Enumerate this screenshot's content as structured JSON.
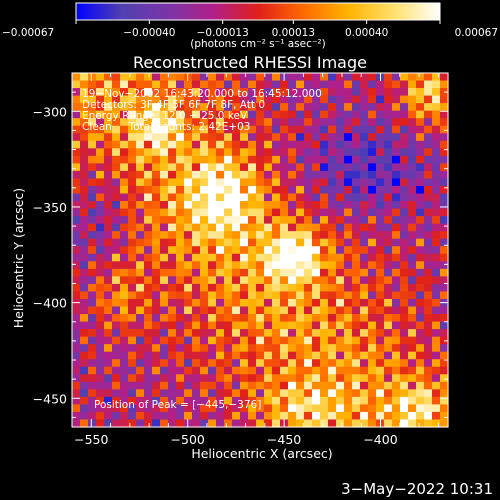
{
  "chart_data": {
    "type": "heatmap",
    "title": "Reconstructed RHESSI Image",
    "xlabel": "Heliocentric X (arcsec)",
    "ylabel": "Heliocentric Y (arcsec)",
    "xlim": [
      -560,
      -365
    ],
    "ylim": [
      -465,
      -280
    ],
    "xticks": [
      -550,
      -500,
      -450,
      -400
    ],
    "xtick_labels": [
      "−550",
      "−500",
      "−450",
      "−400"
    ],
    "yticks": [
      -300,
      -350,
      -400,
      -450
    ],
    "ytick_labels": [
      "−300",
      "−350",
      "−400",
      "−450"
    ],
    "colorbar": {
      "range": [
        -0.00067,
        0.00067
      ],
      "ticks": [
        -0.00067,
        -0.0004,
        -0.00013,
        0.00013,
        0.0004,
        0.00067
      ],
      "tick_labels": [
        "−0.00067",
        "−0.00040",
        "−0.00013",
        "0.00013",
        "0.00040",
        "0.00067"
      ],
      "unit_label": "(photons cm⁻² s⁻¹ asec⁻²)",
      "colormap": [
        "#0000ff",
        "#5040b0",
        "#7a35a8",
        "#b0208a",
        "#e0201a",
        "#ff6a00",
        "#ffb400",
        "#ffe070",
        "#ffffff"
      ]
    },
    "annotations": [
      "19−Nov−2002 16:43:20.000 to 16:45:12.000",
      "Detectors: 3F 4F 5F 6F 7F 8F, Att 0",
      "Energy Range: 12.0 − 25.0 keV",
      "Clean     Total counts: 2.42E+03"
    ],
    "peak_label": "Position of Peak = [−445,−376]",
    "peak": [
      -445,
      -376
    ],
    "grid": false
  },
  "footer": {
    "timestamp": "3−May−2022 10:31"
  }
}
